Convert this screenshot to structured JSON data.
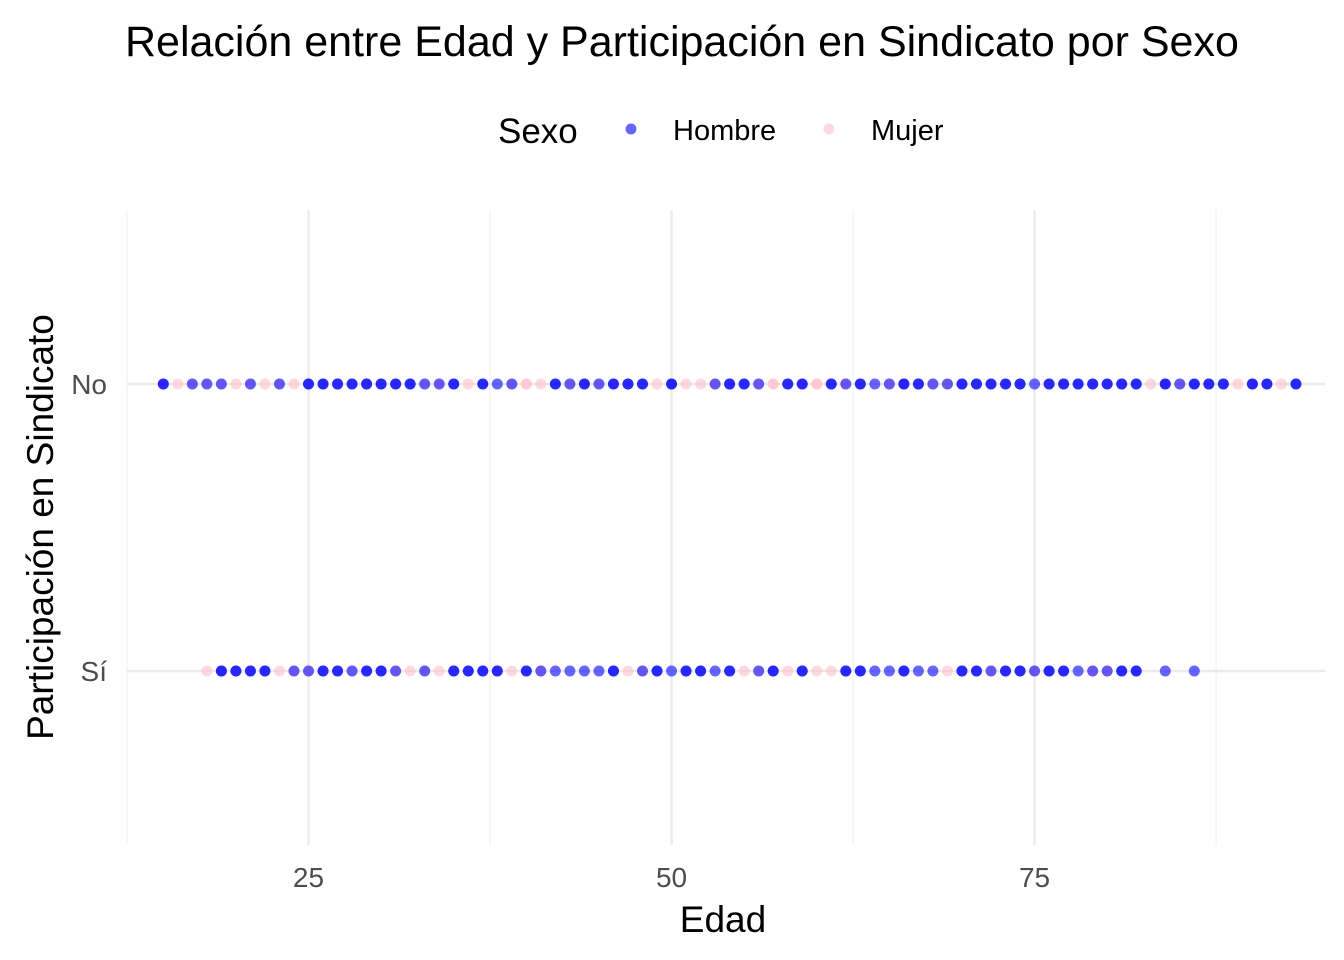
{
  "chart_data": {
    "type": "scatter",
    "title": "Relación entre Edad y Participación en Sindicato por Sexo",
    "xlabel": "Edad",
    "ylabel": "Participación en Sindicato",
    "xlim": [
      12.5,
      95
    ],
    "x_ticks": [
      25,
      50,
      75
    ],
    "y_categories": [
      "No",
      "Sí"
    ],
    "grid": true,
    "legend": {
      "title": "Sexo",
      "position": "top",
      "entries": [
        {
          "name": "Hombre",
          "color": "#0000ff"
        },
        {
          "name": "Mujer",
          "color": "#ffc0cb"
        }
      ]
    },
    "point_alpha": 0.6,
    "series": [
      {
        "name": "Hombre",
        "color": "#0000ff",
        "points": [
          {
            "x": 15,
            "y": "No"
          },
          {
            "x": 15,
            "y": "No"
          },
          {
            "x": 17,
            "y": "No"
          },
          {
            "x": 18,
            "y": "No"
          },
          {
            "x": 19,
            "y": "No"
          },
          {
            "x": 21,
            "y": "No"
          },
          {
            "x": 23,
            "y": "No"
          },
          {
            "x": 25,
            "y": "No"
          },
          {
            "x": 25,
            "y": "No"
          },
          {
            "x": 26,
            "y": "No"
          },
          {
            "x": 26,
            "y": "No"
          },
          {
            "x": 27,
            "y": "No"
          },
          {
            "x": 27,
            "y": "No"
          },
          {
            "x": 28,
            "y": "No"
          },
          {
            "x": 28,
            "y": "No"
          },
          {
            "x": 29,
            "y": "No"
          },
          {
            "x": 29,
            "y": "No"
          },
          {
            "x": 30,
            "y": "No"
          },
          {
            "x": 30,
            "y": "No"
          },
          {
            "x": 31,
            "y": "No"
          },
          {
            "x": 31,
            "y": "No"
          },
          {
            "x": 32,
            "y": "No"
          },
          {
            "x": 32,
            "y": "No"
          },
          {
            "x": 33,
            "y": "No"
          },
          {
            "x": 34,
            "y": "No"
          },
          {
            "x": 35,
            "y": "No"
          },
          {
            "x": 35,
            "y": "No"
          },
          {
            "x": 37,
            "y": "No"
          },
          {
            "x": 37,
            "y": "No"
          },
          {
            "x": 38,
            "y": "No"
          },
          {
            "x": 39,
            "y": "No"
          },
          {
            "x": 42,
            "y": "No"
          },
          {
            "x": 42,
            "y": "No"
          },
          {
            "x": 43,
            "y": "No"
          },
          {
            "x": 44,
            "y": "No"
          },
          {
            "x": 44,
            "y": "No"
          },
          {
            "x": 45,
            "y": "No"
          },
          {
            "x": 46,
            "y": "No"
          },
          {
            "x": 46,
            "y": "No"
          },
          {
            "x": 47,
            "y": "No"
          },
          {
            "x": 47,
            "y": "No"
          },
          {
            "x": 48,
            "y": "No"
          },
          {
            "x": 48,
            "y": "No"
          },
          {
            "x": 50,
            "y": "No"
          },
          {
            "x": 50,
            "y": "No"
          },
          {
            "x": 53,
            "y": "No"
          },
          {
            "x": 54,
            "y": "No"
          },
          {
            "x": 54,
            "y": "No"
          },
          {
            "x": 55,
            "y": "No"
          },
          {
            "x": 55,
            "y": "No"
          },
          {
            "x": 56,
            "y": "No"
          },
          {
            "x": 58,
            "y": "No"
          },
          {
            "x": 58,
            "y": "No"
          },
          {
            "x": 59,
            "y": "No"
          },
          {
            "x": 59,
            "y": "No"
          },
          {
            "x": 61,
            "y": "No"
          },
          {
            "x": 61,
            "y": "No"
          },
          {
            "x": 62,
            "y": "No"
          },
          {
            "x": 63,
            "y": "No"
          },
          {
            "x": 63,
            "y": "No"
          },
          {
            "x": 64,
            "y": "No"
          },
          {
            "x": 65,
            "y": "No"
          },
          {
            "x": 66,
            "y": "No"
          },
          {
            "x": 66,
            "y": "No"
          },
          {
            "x": 67,
            "y": "No"
          },
          {
            "x": 67,
            "y": "No"
          },
          {
            "x": 68,
            "y": "No"
          },
          {
            "x": 69,
            "y": "No"
          },
          {
            "x": 70,
            "y": "No"
          },
          {
            "x": 70,
            "y": "No"
          },
          {
            "x": 71,
            "y": "No"
          },
          {
            "x": 71,
            "y": "No"
          },
          {
            "x": 72,
            "y": "No"
          },
          {
            "x": 72,
            "y": "No"
          },
          {
            "x": 73,
            "y": "No"
          },
          {
            "x": 73,
            "y": "No"
          },
          {
            "x": 74,
            "y": "No"
          },
          {
            "x": 74,
            "y": "No"
          },
          {
            "x": 75,
            "y": "No"
          },
          {
            "x": 76,
            "y": "No"
          },
          {
            "x": 76,
            "y": "No"
          },
          {
            "x": 77,
            "y": "No"
          },
          {
            "x": 77,
            "y": "No"
          },
          {
            "x": 78,
            "y": "No"
          },
          {
            "x": 78,
            "y": "No"
          },
          {
            "x": 79,
            "y": "No"
          },
          {
            "x": 79,
            "y": "No"
          },
          {
            "x": 80,
            "y": "No"
          },
          {
            "x": 80,
            "y": "No"
          },
          {
            "x": 81,
            "y": "No"
          },
          {
            "x": 81,
            "y": "No"
          },
          {
            "x": 82,
            "y": "No"
          },
          {
            "x": 82,
            "y": "No"
          },
          {
            "x": 84,
            "y": "No"
          },
          {
            "x": 84,
            "y": "No"
          },
          {
            "x": 85,
            "y": "No"
          },
          {
            "x": 86,
            "y": "No"
          },
          {
            "x": 86,
            "y": "No"
          },
          {
            "x": 87,
            "y": "No"
          },
          {
            "x": 87,
            "y": "No"
          },
          {
            "x": 88,
            "y": "No"
          },
          {
            "x": 88,
            "y": "No"
          },
          {
            "x": 90,
            "y": "No"
          },
          {
            "x": 90,
            "y": "No"
          },
          {
            "x": 91,
            "y": "No"
          },
          {
            "x": 91,
            "y": "No"
          },
          {
            "x": 93,
            "y": "No"
          },
          {
            "x": 93,
            "y": "No"
          },
          {
            "x": 19,
            "y": "Sí"
          },
          {
            "x": 19,
            "y": "Sí"
          },
          {
            "x": 20,
            "y": "Sí"
          },
          {
            "x": 20,
            "y": "Sí"
          },
          {
            "x": 21,
            "y": "Sí"
          },
          {
            "x": 21,
            "y": "Sí"
          },
          {
            "x": 22,
            "y": "Sí"
          },
          {
            "x": 22,
            "y": "Sí"
          },
          {
            "x": 24,
            "y": "Sí"
          },
          {
            "x": 25,
            "y": "Sí"
          },
          {
            "x": 26,
            "y": "Sí"
          },
          {
            "x": 26,
            "y": "Sí"
          },
          {
            "x": 27,
            "y": "Sí"
          },
          {
            "x": 27,
            "y": "Sí"
          },
          {
            "x": 28,
            "y": "Sí"
          },
          {
            "x": 29,
            "y": "Sí"
          },
          {
            "x": 29,
            "y": "Sí"
          },
          {
            "x": 30,
            "y": "Sí"
          },
          {
            "x": 30,
            "y": "Sí"
          },
          {
            "x": 31,
            "y": "Sí"
          },
          {
            "x": 33,
            "y": "Sí"
          },
          {
            "x": 35,
            "y": "Sí"
          },
          {
            "x": 35,
            "y": "Sí"
          },
          {
            "x": 36,
            "y": "Sí"
          },
          {
            "x": 36,
            "y": "Sí"
          },
          {
            "x": 37,
            "y": "Sí"
          },
          {
            "x": 37,
            "y": "Sí"
          },
          {
            "x": 38,
            "y": "Sí"
          },
          {
            "x": 38,
            "y": "Sí"
          },
          {
            "x": 40,
            "y": "Sí"
          },
          {
            "x": 40,
            "y": "Sí"
          },
          {
            "x": 41,
            "y": "Sí"
          },
          {
            "x": 42,
            "y": "Sí"
          },
          {
            "x": 43,
            "y": "Sí"
          },
          {
            "x": 44,
            "y": "Sí"
          },
          {
            "x": 45,
            "y": "Sí"
          },
          {
            "x": 46,
            "y": "Sí"
          },
          {
            "x": 46,
            "y": "Sí"
          },
          {
            "x": 48,
            "y": "Sí"
          },
          {
            "x": 49,
            "y": "Sí"
          },
          {
            "x": 49,
            "y": "Sí"
          },
          {
            "x": 50,
            "y": "Sí"
          },
          {
            "x": 51,
            "y": "Sí"
          },
          {
            "x": 51,
            "y": "Sí"
          },
          {
            "x": 52,
            "y": "Sí"
          },
          {
            "x": 52,
            "y": "Sí"
          },
          {
            "x": 53,
            "y": "Sí"
          },
          {
            "x": 54,
            "y": "Sí"
          },
          {
            "x": 54,
            "y": "Sí"
          },
          {
            "x": 56,
            "y": "Sí"
          },
          {
            "x": 57,
            "y": "Sí"
          },
          {
            "x": 57,
            "y": "Sí"
          },
          {
            "x": 59,
            "y": "Sí"
          },
          {
            "x": 59,
            "y": "Sí"
          },
          {
            "x": 62,
            "y": "Sí"
          },
          {
            "x": 62,
            "y": "Sí"
          },
          {
            "x": 63,
            "y": "Sí"
          },
          {
            "x": 63,
            "y": "Sí"
          },
          {
            "x": 64,
            "y": "Sí"
          },
          {
            "x": 65,
            "y": "Sí"
          },
          {
            "x": 66,
            "y": "Sí"
          },
          {
            "x": 66,
            "y": "Sí"
          },
          {
            "x": 67,
            "y": "Sí"
          },
          {
            "x": 68,
            "y": "Sí"
          },
          {
            "x": 70,
            "y": "Sí"
          },
          {
            "x": 70,
            "y": "Sí"
          },
          {
            "x": 71,
            "y": "Sí"
          },
          {
            "x": 71,
            "y": "Sí"
          },
          {
            "x": 72,
            "y": "Sí"
          },
          {
            "x": 73,
            "y": "Sí"
          },
          {
            "x": 73,
            "y": "Sí"
          },
          {
            "x": 74,
            "y": "Sí"
          },
          {
            "x": 74,
            "y": "Sí"
          },
          {
            "x": 75,
            "y": "Sí"
          },
          {
            "x": 76,
            "y": "Sí"
          },
          {
            "x": 76,
            "y": "Sí"
          },
          {
            "x": 77,
            "y": "Sí"
          },
          {
            "x": 77,
            "y": "Sí"
          },
          {
            "x": 78,
            "y": "Sí"
          },
          {
            "x": 79,
            "y": "Sí"
          },
          {
            "x": 80,
            "y": "Sí"
          },
          {
            "x": 81,
            "y": "Sí"
          },
          {
            "x": 81,
            "y": "Sí"
          },
          {
            "x": 82,
            "y": "Sí"
          },
          {
            "x": 82,
            "y": "Sí"
          },
          {
            "x": 84,
            "y": "Sí"
          },
          {
            "x": 86,
            "y": "Sí"
          }
        ]
      },
      {
        "name": "Mujer",
        "color": "#ffc0cb",
        "points": [
          {
            "x": 16,
            "y": "No"
          },
          {
            "x": 17,
            "y": "No"
          },
          {
            "x": 18,
            "y": "No"
          },
          {
            "x": 19,
            "y": "No"
          },
          {
            "x": 20,
            "y": "No"
          },
          {
            "x": 21,
            "y": "No"
          },
          {
            "x": 22,
            "y": "No"
          },
          {
            "x": 23,
            "y": "No"
          },
          {
            "x": 24,
            "y": "No"
          },
          {
            "x": 33,
            "y": "No"
          },
          {
            "x": 34,
            "y": "No"
          },
          {
            "x": 36,
            "y": "No"
          },
          {
            "x": 39,
            "y": "No"
          },
          {
            "x": 40,
            "y": "No"
          },
          {
            "x": 40,
            "y": "No"
          },
          {
            "x": 41,
            "y": "No"
          },
          {
            "x": 43,
            "y": "No"
          },
          {
            "x": 45,
            "y": "No"
          },
          {
            "x": 49,
            "y": "No"
          },
          {
            "x": 50,
            "y": "No"
          },
          {
            "x": 51,
            "y": "No"
          },
          {
            "x": 52,
            "y": "No"
          },
          {
            "x": 53,
            "y": "No"
          },
          {
            "x": 56,
            "y": "No"
          },
          {
            "x": 57,
            "y": "No"
          },
          {
            "x": 57,
            "y": "No"
          },
          {
            "x": 60,
            "y": "No"
          },
          {
            "x": 60,
            "y": "No"
          },
          {
            "x": 62,
            "y": "No"
          },
          {
            "x": 65,
            "y": "No"
          },
          {
            "x": 66,
            "y": "No"
          },
          {
            "x": 68,
            "y": "No"
          },
          {
            "x": 69,
            "y": "No"
          },
          {
            "x": 83,
            "y": "No"
          },
          {
            "x": 84,
            "y": "No"
          },
          {
            "x": 85,
            "y": "No"
          },
          {
            "x": 89,
            "y": "No"
          },
          {
            "x": 90,
            "y": "No"
          },
          {
            "x": 92,
            "y": "No"
          },
          {
            "x": 18,
            "y": "Sí"
          },
          {
            "x": 19,
            "y": "Sí"
          },
          {
            "x": 23,
            "y": "Sí"
          },
          {
            "x": 24,
            "y": "Sí"
          },
          {
            "x": 25,
            "y": "Sí"
          },
          {
            "x": 28,
            "y": "Sí"
          },
          {
            "x": 31,
            "y": "Sí"
          },
          {
            "x": 32,
            "y": "Sí"
          },
          {
            "x": 33,
            "y": "Sí"
          },
          {
            "x": 34,
            "y": "Sí"
          },
          {
            "x": 39,
            "y": "Sí"
          },
          {
            "x": 41,
            "y": "Sí"
          },
          {
            "x": 47,
            "y": "Sí"
          },
          {
            "x": 48,
            "y": "Sí"
          },
          {
            "x": 55,
            "y": "Sí"
          },
          {
            "x": 56,
            "y": "Sí"
          },
          {
            "x": 58,
            "y": "Sí"
          },
          {
            "x": 60,
            "y": "Sí"
          },
          {
            "x": 61,
            "y": "Sí"
          },
          {
            "x": 69,
            "y": "Sí"
          },
          {
            "x": 72,
            "y": "Sí"
          },
          {
            "x": 75,
            "y": "Sí"
          },
          {
            "x": 79,
            "y": "Sí"
          },
          {
            "x": 80,
            "y": "Sí"
          }
        ]
      }
    ]
  }
}
